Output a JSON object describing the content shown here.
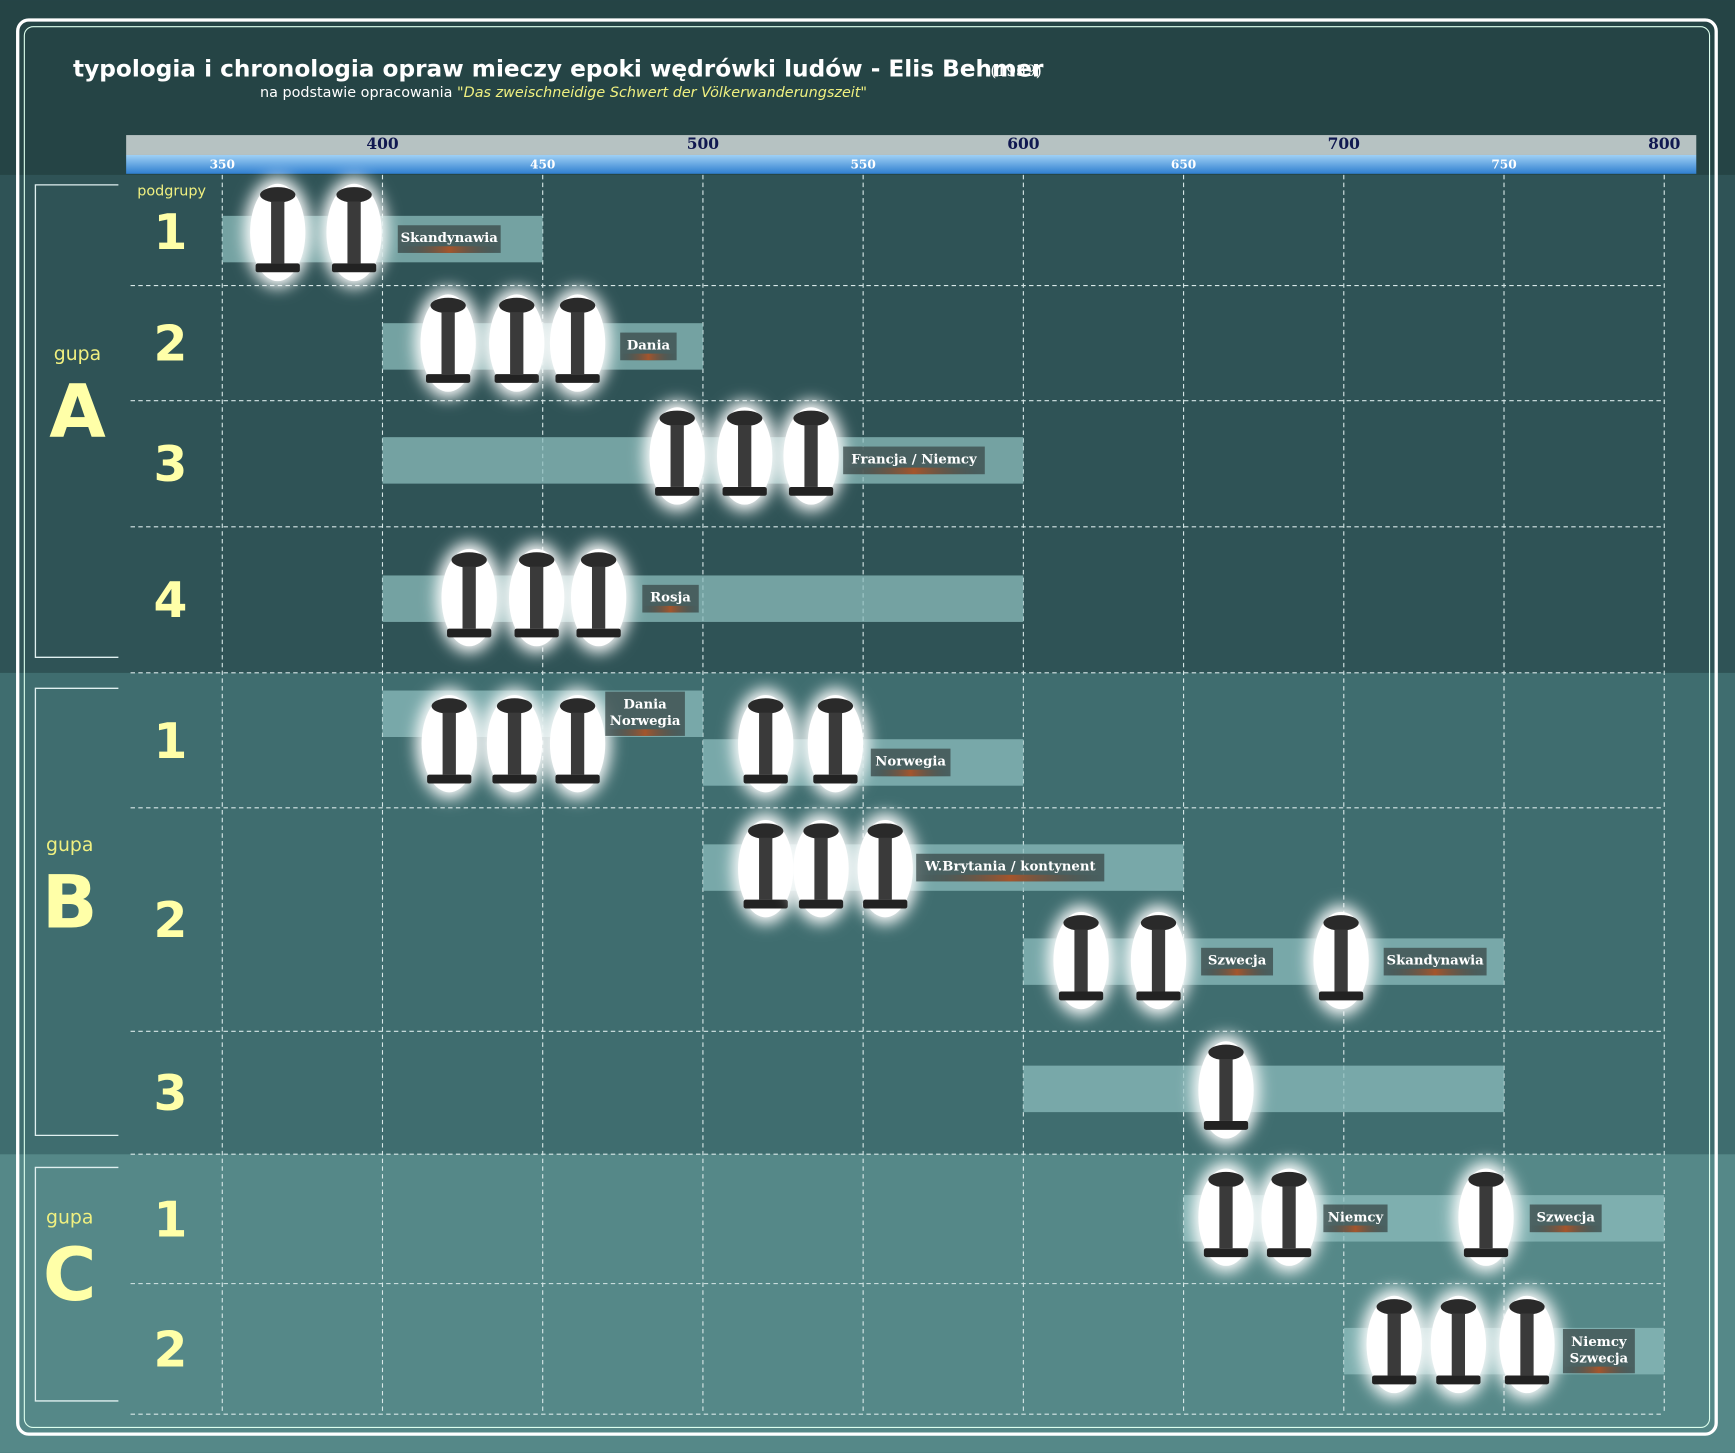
{
  "header": {
    "title": "typologia i chronologia opraw mieczy epoki wędrówki ludów - Elis Behmer",
    "year": "(1939)",
    "subtitle": "na podstawie opracowania",
    "source": "\"Das zweischneidige Schwert der Völkerwanderungszeit\""
  },
  "chart_data": {
    "type": "timeline",
    "xlim": [
      320,
      810
    ],
    "xticks": [
      400,
      500,
      600,
      700,
      800
    ],
    "xminorticks": [
      350,
      450,
      550,
      650,
      750
    ],
    "grid": true,
    "row_header": "podgrupy",
    "groups": [
      {
        "label": "gupa",
        "letter": "A",
        "rows": [
          {
            "name": "1",
            "bars": [
              {
                "start": 350,
                "end": 450,
                "labels": [
                  [
                    "Skandynawia"
                  ]
                ]
              }
            ]
          },
          {
            "name": "2",
            "bars": [
              {
                "start": 400,
                "end": 500,
                "labels": [
                  [
                    "Dania"
                  ]
                ]
              }
            ]
          },
          {
            "name": "3",
            "bars": [
              {
                "start": 400,
                "end": 600,
                "labels": [
                  [
                    "Francja / Niemcy"
                  ]
                ]
              }
            ]
          },
          {
            "name": "4",
            "bars": [
              {
                "start": 400,
                "end": 600,
                "labels": [
                  [
                    "Rosja"
                  ]
                ]
              }
            ]
          }
        ]
      },
      {
        "label": "gupa",
        "letter": "B",
        "rows": [
          {
            "name": "1",
            "bars": [
              {
                "start": 400,
                "end": 500,
                "labels": [
                  [
                    "Dania",
                    "Norwegia"
                  ]
                ]
              },
              {
                "start": 500,
                "end": 600,
                "labels": [
                  [
                    "Norwegia"
                  ]
                ]
              }
            ]
          },
          {
            "name": "2",
            "bars": [
              {
                "start": 500,
                "end": 650,
                "labels": [
                  [
                    "W.Brytania / kontynent"
                  ]
                ]
              },
              {
                "start": 600,
                "end": 750,
                "labels": [
                  [
                    "Szwecja"
                  ],
                  [
                    "Skandynawia"
                  ]
                ]
              }
            ]
          },
          {
            "name": "3",
            "bars": [
              {
                "start": 600,
                "end": 750,
                "labels": []
              }
            ]
          }
        ]
      },
      {
        "label": "gupa",
        "letter": "C",
        "rows": [
          {
            "name": "1",
            "bars": [
              {
                "start": 650,
                "end": 800,
                "labels": [
                  [
                    "Niemcy"
                  ],
                  [
                    "Szwecja"
                  ]
                ]
              }
            ]
          },
          {
            "name": "2",
            "bars": [
              {
                "start": 700,
                "end": 800,
                "labels": [
                  [
                    "Niemcy",
                    "Szwecja"
                  ]
                ]
              }
            ]
          }
        ]
      }
    ]
  }
}
